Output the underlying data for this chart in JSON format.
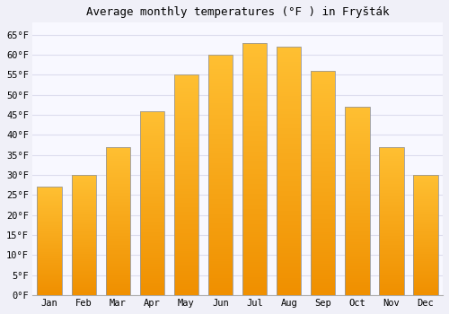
{
  "title": "Average monthly temperatures (°F ) in Fryšták",
  "months": [
    "Jan",
    "Feb",
    "Mar",
    "Apr",
    "May",
    "Jun",
    "Jul",
    "Aug",
    "Sep",
    "Oct",
    "Nov",
    "Dec"
  ],
  "values": [
    27,
    30,
    37,
    46,
    55,
    60,
    63,
    62,
    56,
    47,
    37,
    30
  ],
  "bar_color_top": "#FFB733",
  "bar_color_bottom": "#F09000",
  "bar_edge_color": "#999999",
  "background_color": "#f0f0f8",
  "plot_bg_color": "#f8f8ff",
  "grid_color": "#ddddee",
  "ylim": [
    0,
    68
  ],
  "yticks": [
    0,
    5,
    10,
    15,
    20,
    25,
    30,
    35,
    40,
    45,
    50,
    55,
    60,
    65
  ],
  "title_fontsize": 9,
  "tick_fontsize": 7.5,
  "title_font": "monospace"
}
